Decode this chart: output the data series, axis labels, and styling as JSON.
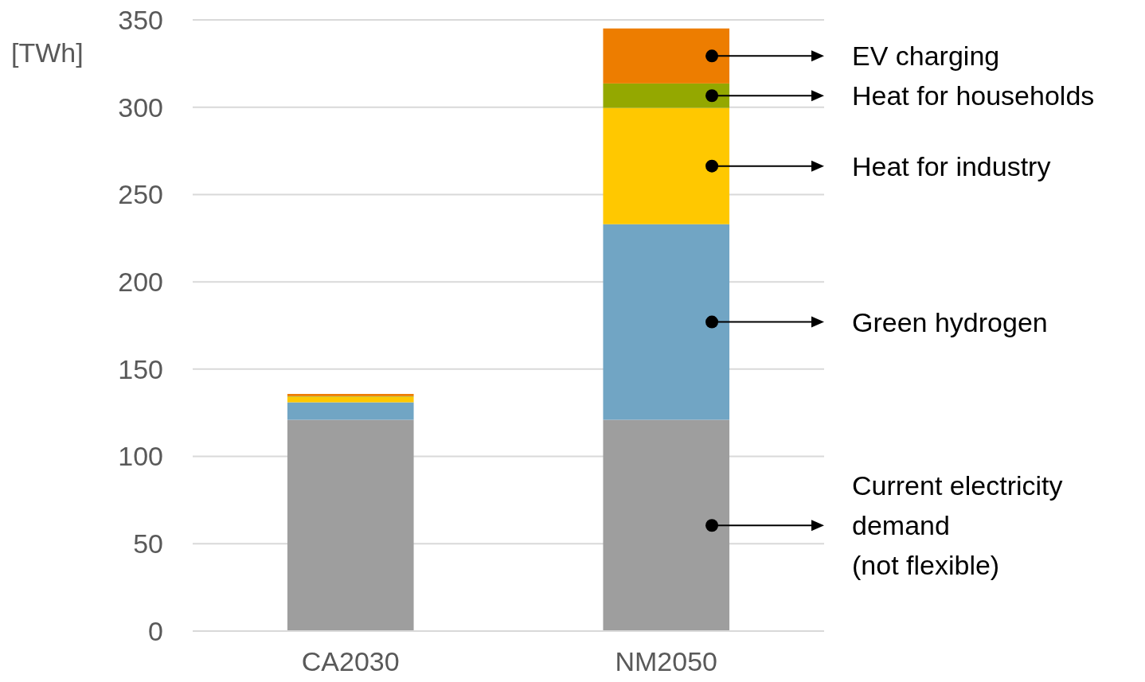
{
  "chart_data": {
    "type": "bar",
    "stacked": true,
    "ylabel": "[TWh]",
    "categories": [
      "CA2030",
      "NM2050"
    ],
    "series": [
      {
        "name": "Current electricity demand (not flexible)",
        "color": "#9e9e9e",
        "values": [
          121,
          121
        ]
      },
      {
        "name": "Green hydrogen",
        "color": "#71a5c4",
        "values": [
          10,
          112
        ]
      },
      {
        "name": "Heat for industry",
        "color": "#ffc800",
        "values": [
          3.2,
          66.6
        ]
      },
      {
        "name": "Heat for households",
        "color": "#94a800",
        "values": [
          0.3,
          14
        ]
      },
      {
        "name": "EV charging",
        "color": "#ed7d00",
        "values": [
          1.3,
          31.5
        ]
      }
    ],
    "ylim": [
      0,
      350
    ],
    "yticks": [
      0,
      50,
      100,
      150,
      200,
      250,
      300,
      350
    ],
    "grid": "y",
    "legend": false
  }
}
